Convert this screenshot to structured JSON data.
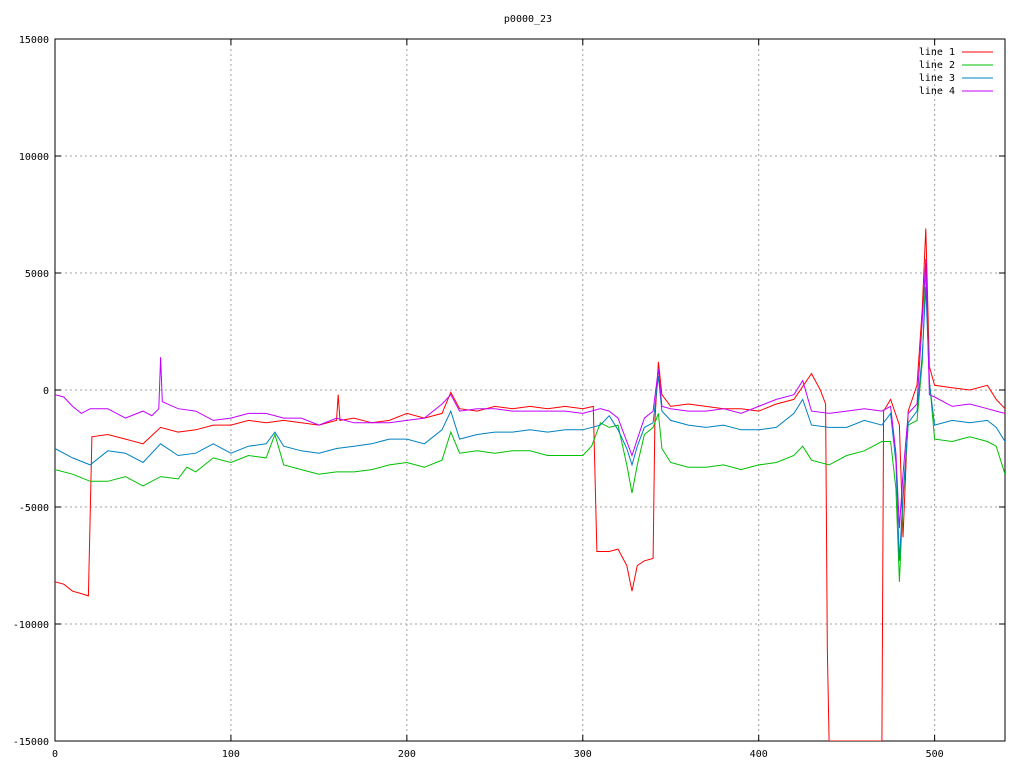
{
  "chart_data": {
    "type": "line",
    "title": "p0000_23",
    "xlabel": "",
    "ylabel": "",
    "xlim": [
      0,
      540
    ],
    "ylim": [
      -15000,
      15000
    ],
    "xticks": [
      0,
      100,
      200,
      300,
      400,
      500
    ],
    "yticks": [
      -15000,
      -10000,
      -5000,
      0,
      5000,
      10000,
      15000
    ],
    "grid": true,
    "legend_position": "top-right",
    "series": [
      {
        "name": "line 1",
        "color": "#ff0000",
        "points": [
          [
            0,
            -8200
          ],
          [
            5,
            -8300
          ],
          [
            10,
            -8600
          ],
          [
            15,
            -8700
          ],
          [
            19,
            -8800
          ],
          [
            21,
            -2000
          ],
          [
            30,
            -1900
          ],
          [
            40,
            -2100
          ],
          [
            50,
            -2300
          ],
          [
            60,
            -1600
          ],
          [
            70,
            -1800
          ],
          [
            80,
            -1700
          ],
          [
            90,
            -1500
          ],
          [
            100,
            -1500
          ],
          [
            110,
            -1300
          ],
          [
            120,
            -1400
          ],
          [
            130,
            -1300
          ],
          [
            140,
            -1400
          ],
          [
            150,
            -1500
          ],
          [
            160,
            -1300
          ],
          [
            161,
            -200
          ],
          [
            162,
            -1300
          ],
          [
            170,
            -1200
          ],
          [
            180,
            -1400
          ],
          [
            190,
            -1300
          ],
          [
            200,
            -1000
          ],
          [
            210,
            -1200
          ],
          [
            220,
            -1000
          ],
          [
            225,
            -100
          ],
          [
            230,
            -800
          ],
          [
            240,
            -900
          ],
          [
            250,
            -700
          ],
          [
            260,
            -800
          ],
          [
            270,
            -700
          ],
          [
            280,
            -800
          ],
          [
            290,
            -700
          ],
          [
            300,
            -800
          ],
          [
            306,
            -700
          ],
          [
            308,
            -6900
          ],
          [
            315,
            -6900
          ],
          [
            320,
            -6800
          ],
          [
            325,
            -7500
          ],
          [
            328,
            -8600
          ],
          [
            331,
            -7500
          ],
          [
            335,
            -7300
          ],
          [
            340,
            -7200
          ],
          [
            341,
            -1300
          ],
          [
            343,
            1200
          ],
          [
            345,
            -200
          ],
          [
            350,
            -700
          ],
          [
            360,
            -600
          ],
          [
            370,
            -700
          ],
          [
            380,
            -800
          ],
          [
            390,
            -800
          ],
          [
            400,
            -900
          ],
          [
            410,
            -600
          ],
          [
            420,
            -400
          ],
          [
            430,
            700
          ],
          [
            435,
            0
          ],
          [
            438,
            -600
          ],
          [
            439,
            -11000
          ],
          [
            440,
            -15000
          ],
          [
            470,
            -15000
          ],
          [
            471,
            -900
          ],
          [
            475,
            -400
          ],
          [
            480,
            -1500
          ],
          [
            482,
            -6300
          ],
          [
            485,
            -900
          ],
          [
            490,
            200
          ],
          [
            493,
            3500
          ],
          [
            495,
            6900
          ],
          [
            497,
            1000
          ],
          [
            500,
            200
          ],
          [
            510,
            100
          ],
          [
            520,
            0
          ],
          [
            530,
            200
          ],
          [
            535,
            -400
          ],
          [
            540,
            -800
          ]
        ]
      },
      {
        "name": "line 2",
        "color": "#00c000",
        "points": [
          [
            0,
            -3400
          ],
          [
            10,
            -3600
          ],
          [
            20,
            -3900
          ],
          [
            30,
            -3900
          ],
          [
            40,
            -3700
          ],
          [
            50,
            -4100
          ],
          [
            60,
            -3700
          ],
          [
            70,
            -3800
          ],
          [
            75,
            -3300
          ],
          [
            80,
            -3500
          ],
          [
            90,
            -2900
          ],
          [
            100,
            -3100
          ],
          [
            110,
            -2800
          ],
          [
            120,
            -2900
          ],
          [
            125,
            -1900
          ],
          [
            130,
            -3200
          ],
          [
            140,
            -3400
          ],
          [
            150,
            -3600
          ],
          [
            160,
            -3500
          ],
          [
            170,
            -3500
          ],
          [
            180,
            -3400
          ],
          [
            190,
            -3200
          ],
          [
            200,
            -3100
          ],
          [
            210,
            -3300
          ],
          [
            220,
            -3000
          ],
          [
            225,
            -1800
          ],
          [
            230,
            -2700
          ],
          [
            240,
            -2600
          ],
          [
            250,
            -2700
          ],
          [
            260,
            -2600
          ],
          [
            270,
            -2600
          ],
          [
            280,
            -2800
          ],
          [
            290,
            -2800
          ],
          [
            300,
            -2800
          ],
          [
            305,
            -2400
          ],
          [
            310,
            -1400
          ],
          [
            315,
            -1600
          ],
          [
            320,
            -1500
          ],
          [
            325,
            -3200
          ],
          [
            328,
            -4400
          ],
          [
            331,
            -3200
          ],
          [
            335,
            -1900
          ],
          [
            340,
            -1600
          ],
          [
            343,
            -1000
          ],
          [
            345,
            -2500
          ],
          [
            350,
            -3100
          ],
          [
            360,
            -3300
          ],
          [
            370,
            -3300
          ],
          [
            380,
            -3200
          ],
          [
            390,
            -3400
          ],
          [
            400,
            -3200
          ],
          [
            410,
            -3100
          ],
          [
            420,
            -2800
          ],
          [
            425,
            -2400
          ],
          [
            430,
            -3000
          ],
          [
            440,
            -3200
          ],
          [
            450,
            -2800
          ],
          [
            460,
            -2600
          ],
          [
            470,
            -2200
          ],
          [
            475,
            -2200
          ],
          [
            478,
            -4200
          ],
          [
            480,
            -8200
          ],
          [
            482,
            -4700
          ],
          [
            485,
            -1500
          ],
          [
            490,
            -1300
          ],
          [
            493,
            1200
          ],
          [
            495,
            5300
          ],
          [
            497,
            400
          ],
          [
            500,
            -2100
          ],
          [
            510,
            -2200
          ],
          [
            520,
            -2000
          ],
          [
            530,
            -2200
          ],
          [
            535,
            -2400
          ],
          [
            540,
            -3600
          ]
        ]
      },
      {
        "name": "line 3",
        "color": "#0080c0",
        "points": [
          [
            0,
            -2500
          ],
          [
            10,
            -2900
          ],
          [
            20,
            -3200
          ],
          [
            30,
            -2600
          ],
          [
            40,
            -2700
          ],
          [
            50,
            -3100
          ],
          [
            60,
            -2300
          ],
          [
            70,
            -2800
          ],
          [
            80,
            -2700
          ],
          [
            90,
            -2300
          ],
          [
            100,
            -2700
          ],
          [
            110,
            -2400
          ],
          [
            120,
            -2300
          ],
          [
            125,
            -1800
          ],
          [
            130,
            -2400
          ],
          [
            140,
            -2600
          ],
          [
            150,
            -2700
          ],
          [
            160,
            -2500
          ],
          [
            170,
            -2400
          ],
          [
            180,
            -2300
          ],
          [
            190,
            -2100
          ],
          [
            200,
            -2100
          ],
          [
            210,
            -2300
          ],
          [
            220,
            -1700
          ],
          [
            225,
            -900
          ],
          [
            230,
            -2100
          ],
          [
            240,
            -1900
          ],
          [
            250,
            -1800
          ],
          [
            260,
            -1800
          ],
          [
            270,
            -1700
          ],
          [
            280,
            -1800
          ],
          [
            290,
            -1700
          ],
          [
            300,
            -1700
          ],
          [
            310,
            -1500
          ],
          [
            315,
            -1100
          ],
          [
            320,
            -1700
          ],
          [
            325,
            -2500
          ],
          [
            328,
            -3200
          ],
          [
            331,
            -2400
          ],
          [
            335,
            -1600
          ],
          [
            340,
            -1400
          ],
          [
            343,
            600
          ],
          [
            345,
            -900
          ],
          [
            350,
            -1300
          ],
          [
            360,
            -1500
          ],
          [
            370,
            -1600
          ],
          [
            380,
            -1500
          ],
          [
            390,
            -1700
          ],
          [
            400,
            -1700
          ],
          [
            410,
            -1600
          ],
          [
            420,
            -1000
          ],
          [
            425,
            -400
          ],
          [
            430,
            -1500
          ],
          [
            440,
            -1600
          ],
          [
            450,
            -1600
          ],
          [
            460,
            -1300
          ],
          [
            470,
            -1500
          ],
          [
            475,
            -1000
          ],
          [
            478,
            -3100
          ],
          [
            480,
            -7300
          ],
          [
            482,
            -4500
          ],
          [
            485,
            -1400
          ],
          [
            490,
            -900
          ],
          [
            493,
            1500
          ],
          [
            495,
            4400
          ],
          [
            497,
            300
          ],
          [
            500,
            -1500
          ],
          [
            510,
            -1300
          ],
          [
            520,
            -1400
          ],
          [
            530,
            -1300
          ],
          [
            535,
            -1600
          ],
          [
            540,
            -2200
          ]
        ]
      },
      {
        "name": "line 4",
        "color": "#c000ff",
        "points": [
          [
            0,
            -200
          ],
          [
            5,
            -300
          ],
          [
            10,
            -700
          ],
          [
            15,
            -1000
          ],
          [
            20,
            -800
          ],
          [
            30,
            -800
          ],
          [
            40,
            -1200
          ],
          [
            50,
            -900
          ],
          [
            55,
            -1100
          ],
          [
            59,
            -800
          ],
          [
            60,
            1400
          ],
          [
            61,
            -500
          ],
          [
            70,
            -800
          ],
          [
            80,
            -900
          ],
          [
            90,
            -1300
          ],
          [
            100,
            -1200
          ],
          [
            110,
            -1000
          ],
          [
            120,
            -1000
          ],
          [
            130,
            -1200
          ],
          [
            140,
            -1200
          ],
          [
            150,
            -1500
          ],
          [
            160,
            -1200
          ],
          [
            170,
            -1400
          ],
          [
            180,
            -1400
          ],
          [
            190,
            -1400
          ],
          [
            200,
            -1300
          ],
          [
            210,
            -1200
          ],
          [
            220,
            -600
          ],
          [
            225,
            -200
          ],
          [
            230,
            -900
          ],
          [
            240,
            -800
          ],
          [
            250,
            -800
          ],
          [
            260,
            -900
          ],
          [
            270,
            -900
          ],
          [
            280,
            -900
          ],
          [
            290,
            -900
          ],
          [
            300,
            -1000
          ],
          [
            310,
            -800
          ],
          [
            315,
            -900
          ],
          [
            320,
            -1200
          ],
          [
            325,
            -2200
          ],
          [
            328,
            -2800
          ],
          [
            331,
            -2100
          ],
          [
            335,
            -1200
          ],
          [
            340,
            -900
          ],
          [
            343,
            900
          ],
          [
            345,
            -700
          ],
          [
            350,
            -800
          ],
          [
            360,
            -900
          ],
          [
            370,
            -900
          ],
          [
            380,
            -800
          ],
          [
            390,
            -1000
          ],
          [
            400,
            -700
          ],
          [
            410,
            -400
          ],
          [
            420,
            -200
          ],
          [
            425,
            400
          ],
          [
            430,
            -900
          ],
          [
            440,
            -1000
          ],
          [
            450,
            -900
          ],
          [
            460,
            -800
          ],
          [
            470,
            -900
          ],
          [
            475,
            -700
          ],
          [
            478,
            -2700
          ],
          [
            480,
            -5900
          ],
          [
            482,
            -3600
          ],
          [
            485,
            -1000
          ],
          [
            490,
            -600
          ],
          [
            493,
            3000
          ],
          [
            495,
            5600
          ],
          [
            497,
            -200
          ],
          [
            500,
            -300
          ],
          [
            510,
            -700
          ],
          [
            520,
            -600
          ],
          [
            530,
            -800
          ],
          [
            535,
            -900
          ],
          [
            540,
            -1000
          ]
        ]
      }
    ]
  }
}
